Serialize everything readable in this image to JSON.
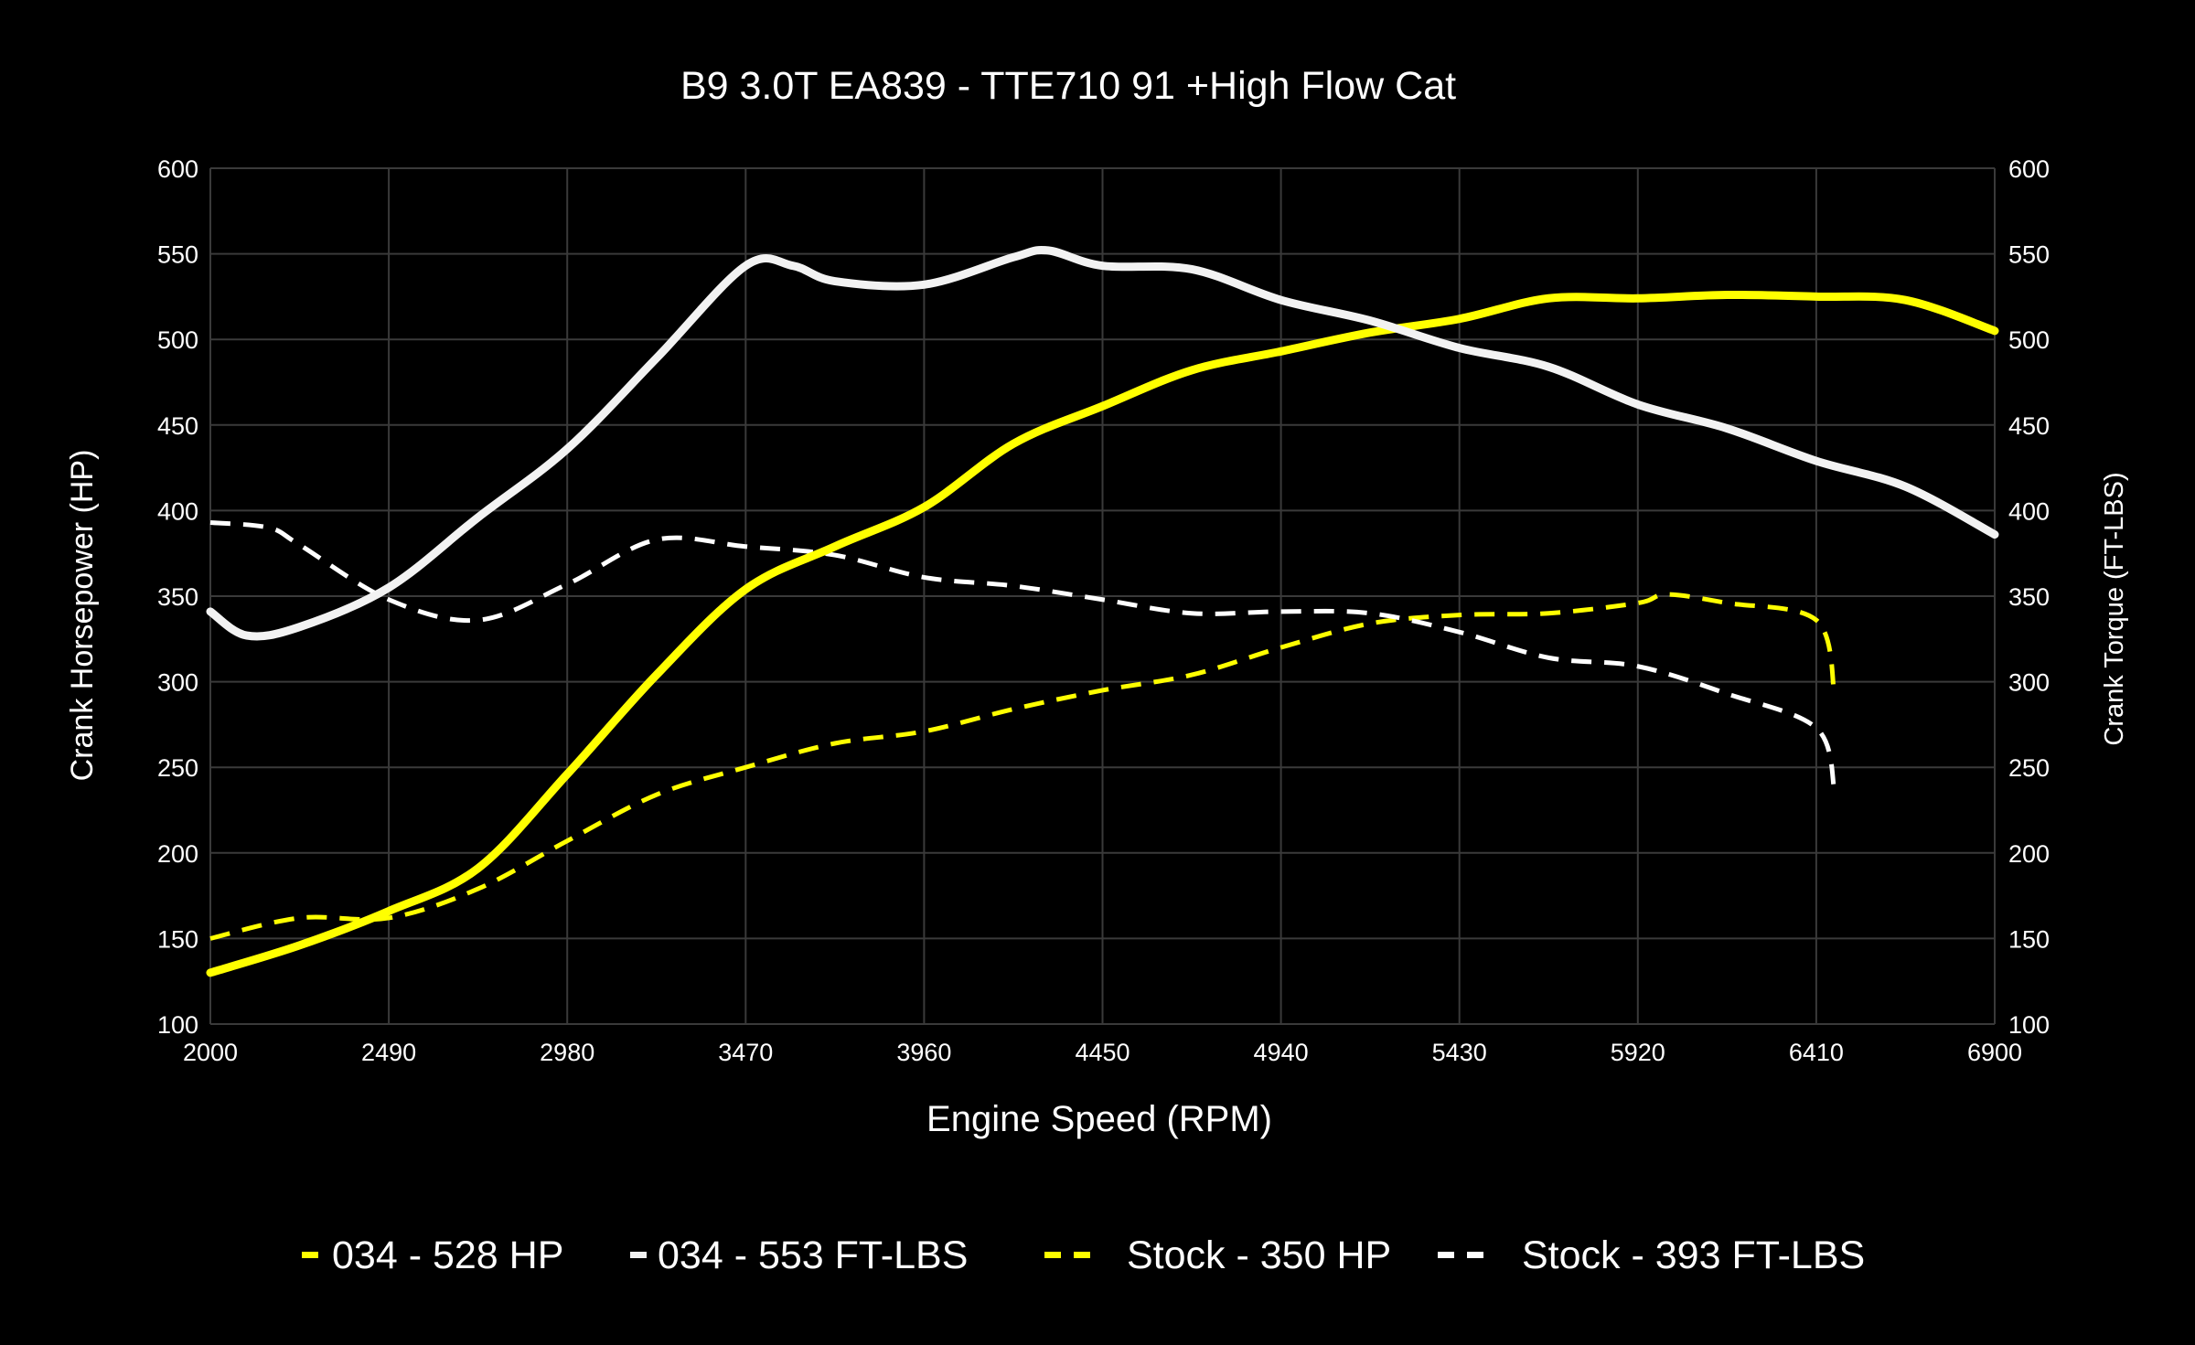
{
  "chart_data": {
    "type": "line",
    "title": "B9 3.0T EA839 - TTE710 91 +High Flow Cat",
    "xlabel": "Engine Speed (RPM)",
    "ylabel_left": "Crank Horsepower (HP)",
    "ylabel_right": "Crank Torque (FT-LBS)",
    "xlim": [
      2000,
      6900
    ],
    "ylim": [
      100,
      600
    ],
    "y2lim": [
      100,
      600
    ],
    "xticks": [
      2000,
      2490,
      2980,
      3470,
      3960,
      4450,
      4940,
      5430,
      5920,
      6410,
      6900
    ],
    "yticks": [
      100,
      150,
      200,
      250,
      300,
      350,
      400,
      450,
      500,
      550,
      600
    ],
    "grid": true,
    "legend_placement": "bottom",
    "series": [
      {
        "name": "034 - 528 HP",
        "color": "#ffff00",
        "style": "solid",
        "axis": "left",
        "x": [
          2000,
          2245,
          2490,
          2735,
          2980,
          3225,
          3470,
          3715,
          3960,
          4205,
          4450,
          4695,
          4940,
          5185,
          5430,
          5675,
          5920,
          6165,
          6410,
          6655,
          6900
        ],
        "y": [
          130,
          146,
          166,
          191,
          246,
          304,
          354,
          379,
          402,
          439,
          461,
          482,
          493,
          504,
          512,
          524,
          524,
          526,
          525,
          523,
          505
        ]
      },
      {
        "name": "034 - 553 FT-LBS",
        "color": "#f2f2f2",
        "style": "solid",
        "axis": "right",
        "x": [
          2000,
          2100,
          2245,
          2490,
          2735,
          2980,
          3225,
          3470,
          3600,
          3715,
          3960,
          4205,
          4300,
          4450,
          4695,
          4940,
          5185,
          5430,
          5675,
          5920,
          6165,
          6410,
          6655,
          6900
        ],
        "y": [
          341,
          327,
          332,
          355,
          396,
          436,
          489,
          543,
          543,
          534,
          532,
          548,
          552,
          543,
          541,
          523,
          511,
          495,
          484,
          462,
          448,
          429,
          414,
          386
        ]
      },
      {
        "name": "Stock - 350 HP",
        "color": "#ffff00",
        "style": "dashed",
        "axis": "left",
        "x": [
          2000,
          2245,
          2490,
          2735,
          2980,
          3225,
          3470,
          3715,
          3960,
          4205,
          4450,
          4695,
          4940,
          5185,
          5430,
          5675,
          5920,
          6000,
          6165,
          6410,
          6460
        ],
        "y": [
          150,
          162,
          162,
          179,
          207,
          234,
          250,
          264,
          271,
          284,
          295,
          304,
          320,
          334,
          339,
          340,
          346,
          351,
          346,
          336,
          293
        ]
      },
      {
        "name": "Stock - 393 FT-LBS",
        "color": "#ffffff",
        "style": "dashed",
        "axis": "right",
        "x": [
          2000,
          2160,
          2245,
          2490,
          2735,
          2980,
          3225,
          3470,
          3715,
          3960,
          4205,
          4450,
          4695,
          4940,
          5185,
          5430,
          5675,
          5920,
          6165,
          6410,
          6460
        ],
        "y": [
          393,
          390,
          380,
          348,
          336,
          357,
          383,
          379,
          374,
          361,
          356,
          348,
          340,
          341,
          340,
          329,
          314,
          309,
          293,
          273,
          237
        ]
      }
    ]
  }
}
